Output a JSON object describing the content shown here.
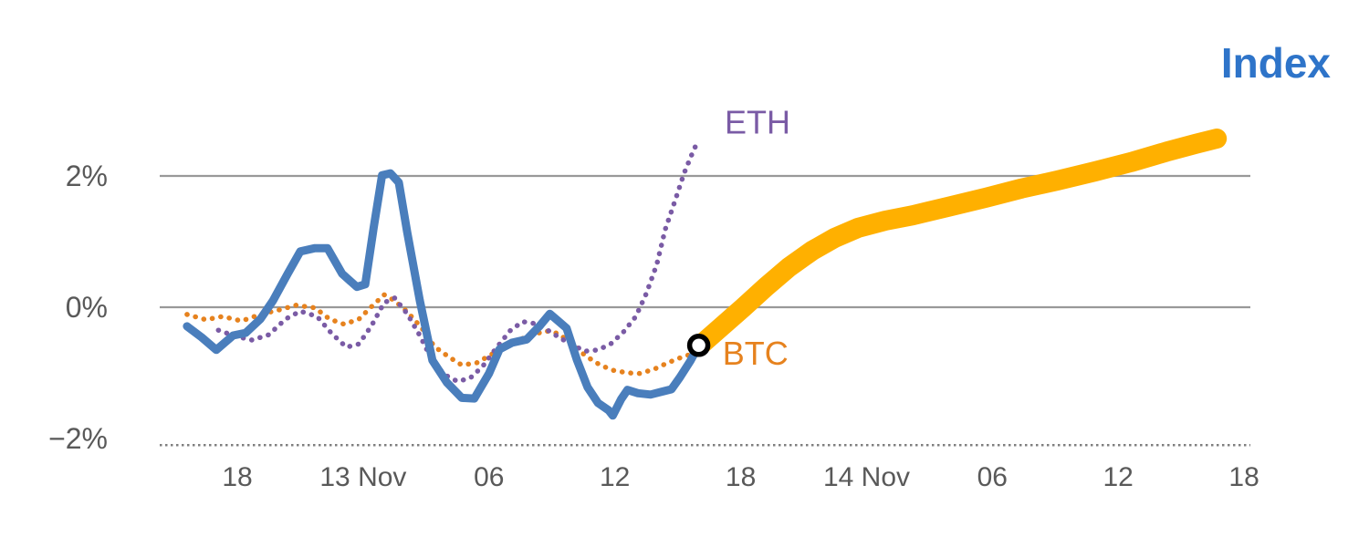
{
  "chart_data": {
    "type": "line",
    "title": "Index",
    "title_color": "#2E74C9",
    "colors": {
      "grid": "#999999",
      "grid_dashed": "#7f7f7f",
      "tick_label": "#595959",
      "marker_fill": "#ffffff",
      "marker_stroke": "#000000"
    },
    "y_axis": {
      "ticks": [
        {
          "value": 2,
          "label": "2%"
        },
        {
          "value": 0,
          "label": "0%"
        },
        {
          "value": -2,
          "label": "−2%"
        }
      ]
    },
    "x_axis": {
      "ticks": [
        {
          "t": 6,
          "label": "18"
        },
        {
          "t": 12,
          "label": "13 Nov"
        },
        {
          "t": 18,
          "label": "06"
        },
        {
          "t": 24,
          "label": "12"
        },
        {
          "t": 30,
          "label": "18"
        },
        {
          "t": 36,
          "label": "14 Nov"
        },
        {
          "t": 42,
          "label": "06"
        },
        {
          "t": 48,
          "label": "12"
        },
        {
          "t": 54,
          "label": "18"
        }
      ]
    },
    "gridlines": [
      {
        "value": 2,
        "style": "solid"
      },
      {
        "value": 0,
        "style": "solid"
      },
      {
        "value": -2.1,
        "style": "dashed"
      }
    ],
    "series": [
      {
        "name": "BTC",
        "color": "#E6821E",
        "style": "dotted",
        "width": 5.5,
        "points": [
          [
            3.6,
            -0.11
          ],
          [
            4.5,
            -0.19
          ],
          [
            5.3,
            -0.14
          ],
          [
            6.2,
            -0.21
          ],
          [
            7.1,
            -0.11
          ],
          [
            8.0,
            -0.04
          ],
          [
            8.8,
            0.03
          ],
          [
            9.7,
            -0.01
          ],
          [
            10.4,
            -0.18
          ],
          [
            11.1,
            -0.26
          ],
          [
            11.8,
            -0.18
          ],
          [
            12.4,
            0.01
          ],
          [
            13.0,
            0.19
          ],
          [
            13.5,
            0.1
          ],
          [
            14.1,
            -0.07
          ],
          [
            14.8,
            -0.32
          ],
          [
            15.4,
            -0.6
          ],
          [
            16.1,
            -0.76
          ],
          [
            16.7,
            -0.88
          ],
          [
            17.4,
            -0.85
          ],
          [
            18.0,
            -0.74
          ],
          [
            18.7,
            -0.61
          ],
          [
            19.3,
            -0.51
          ],
          [
            20.0,
            -0.43
          ],
          [
            20.7,
            -0.36
          ],
          [
            21.3,
            -0.4
          ],
          [
            22.0,
            -0.57
          ],
          [
            22.6,
            -0.74
          ],
          [
            23.3,
            -0.88
          ],
          [
            23.9,
            -0.96
          ],
          [
            24.6,
            -1.0
          ],
          [
            25.2,
            -1.01
          ],
          [
            25.9,
            -0.94
          ],
          [
            26.5,
            -0.85
          ],
          [
            27.2,
            -0.76
          ],
          [
            27.6,
            -0.72
          ]
        ]
      },
      {
        "name": "ETH",
        "color": "#7A5BA5",
        "style": "dotted",
        "width": 5.5,
        "points": [
          [
            5.1,
            -0.35
          ],
          [
            5.9,
            -0.44
          ],
          [
            6.7,
            -0.5
          ],
          [
            7.5,
            -0.42
          ],
          [
            8.3,
            -0.18
          ],
          [
            9.0,
            -0.06
          ],
          [
            9.8,
            -0.14
          ],
          [
            10.5,
            -0.4
          ],
          [
            11.2,
            -0.61
          ],
          [
            11.8,
            -0.56
          ],
          [
            12.4,
            -0.28
          ],
          [
            13.0,
            0.07
          ],
          [
            13.5,
            0.14
          ],
          [
            14.1,
            -0.1
          ],
          [
            14.7,
            -0.43
          ],
          [
            15.3,
            -0.82
          ],
          [
            15.9,
            -1.03
          ],
          [
            16.5,
            -1.13
          ],
          [
            17.1,
            -1.08
          ],
          [
            17.7,
            -0.9
          ],
          [
            18.3,
            -0.64
          ],
          [
            19.0,
            -0.36
          ],
          [
            19.6,
            -0.22
          ],
          [
            20.2,
            -0.25
          ],
          [
            20.8,
            -0.35
          ],
          [
            21.4,
            -0.47
          ],
          [
            22.0,
            -0.58
          ],
          [
            22.6,
            -0.67
          ],
          [
            23.2,
            -0.65
          ],
          [
            23.8,
            -0.56
          ],
          [
            24.4,
            -0.38
          ],
          [
            25.0,
            -0.14
          ],
          [
            25.5,
            0.21
          ],
          [
            26.0,
            0.65
          ],
          [
            26.4,
            1.18
          ],
          [
            26.9,
            1.65
          ],
          [
            27.3,
            2.04
          ],
          [
            27.7,
            2.35
          ],
          [
            27.9,
            2.49
          ]
        ]
      },
      {
        "name": "Index",
        "color": "#4A7EBC",
        "style": "solid",
        "width": 9,
        "points": [
          [
            3.6,
            -0.29
          ],
          [
            4.3,
            -0.46
          ],
          [
            5.0,
            -0.65
          ],
          [
            5.8,
            -0.43
          ],
          [
            6.4,
            -0.39
          ],
          [
            7.1,
            -0.18
          ],
          [
            7.7,
            0.1
          ],
          [
            8.4,
            0.51
          ],
          [
            9.0,
            0.85
          ],
          [
            9.7,
            0.9
          ],
          [
            10.3,
            0.9
          ],
          [
            11.0,
            0.51
          ],
          [
            11.7,
            0.31
          ],
          [
            12.1,
            0.35
          ],
          [
            12.5,
            1.21
          ],
          [
            12.9,
            2.01
          ],
          [
            13.3,
            2.04
          ],
          [
            13.7,
            1.9
          ],
          [
            14.1,
            1.14
          ],
          [
            14.7,
            0.1
          ],
          [
            15.3,
            -0.81
          ],
          [
            16.0,
            -1.15
          ],
          [
            16.7,
            -1.38
          ],
          [
            17.3,
            -1.39
          ],
          [
            18.0,
            -1.01
          ],
          [
            18.5,
            -0.64
          ],
          [
            19.1,
            -0.54
          ],
          [
            19.8,
            -0.49
          ],
          [
            20.4,
            -0.29
          ],
          [
            20.9,
            -0.1
          ],
          [
            21.3,
            -0.21
          ],
          [
            21.7,
            -0.32
          ],
          [
            22.2,
            -0.81
          ],
          [
            22.7,
            -1.22
          ],
          [
            23.2,
            -1.46
          ],
          [
            23.7,
            -1.57
          ],
          [
            23.9,
            -1.65
          ],
          [
            24.3,
            -1.4
          ],
          [
            24.6,
            -1.26
          ],
          [
            25.1,
            -1.31
          ],
          [
            25.7,
            -1.33
          ],
          [
            26.2,
            -1.29
          ],
          [
            26.7,
            -1.25
          ],
          [
            27.1,
            -1.07
          ],
          [
            27.6,
            -0.82
          ],
          [
            28.0,
            -0.58
          ]
        ]
      },
      {
        "name": "Index forecast",
        "color": "#FFB000",
        "style": "solid",
        "width": 22,
        "points": [
          [
            28.0,
            -0.6
          ],
          [
            29.0,
            -0.32
          ],
          [
            30.1,
            -0.01
          ],
          [
            31.2,
            0.31
          ],
          [
            32.3,
            0.61
          ],
          [
            33.4,
            0.86
          ],
          [
            34.5,
            1.06
          ],
          [
            35.6,
            1.21
          ],
          [
            36.9,
            1.32
          ],
          [
            38.2,
            1.4
          ],
          [
            39.9,
            1.53
          ],
          [
            41.7,
            1.67
          ],
          [
            43.4,
            1.81
          ],
          [
            45.1,
            1.93
          ],
          [
            46.9,
            2.07
          ],
          [
            48.6,
            2.21
          ],
          [
            50.3,
            2.37
          ],
          [
            51.7,
            2.49
          ],
          [
            52.7,
            2.57
          ]
        ]
      }
    ],
    "annotations": [
      {
        "text": "ETH",
        "color": "#7A5BA5",
        "t": 30.8,
        "v": 2.82,
        "size": 36
      },
      {
        "text": "BTC",
        "color": "#E6821E",
        "t": 30.7,
        "v": -0.7,
        "size": 36
      }
    ],
    "marker": {
      "t": 28.0,
      "v": -0.58
    },
    "xlim": [
      2.3,
      54.3
    ],
    "ylim": [
      -2.4,
      3.3
    ]
  }
}
